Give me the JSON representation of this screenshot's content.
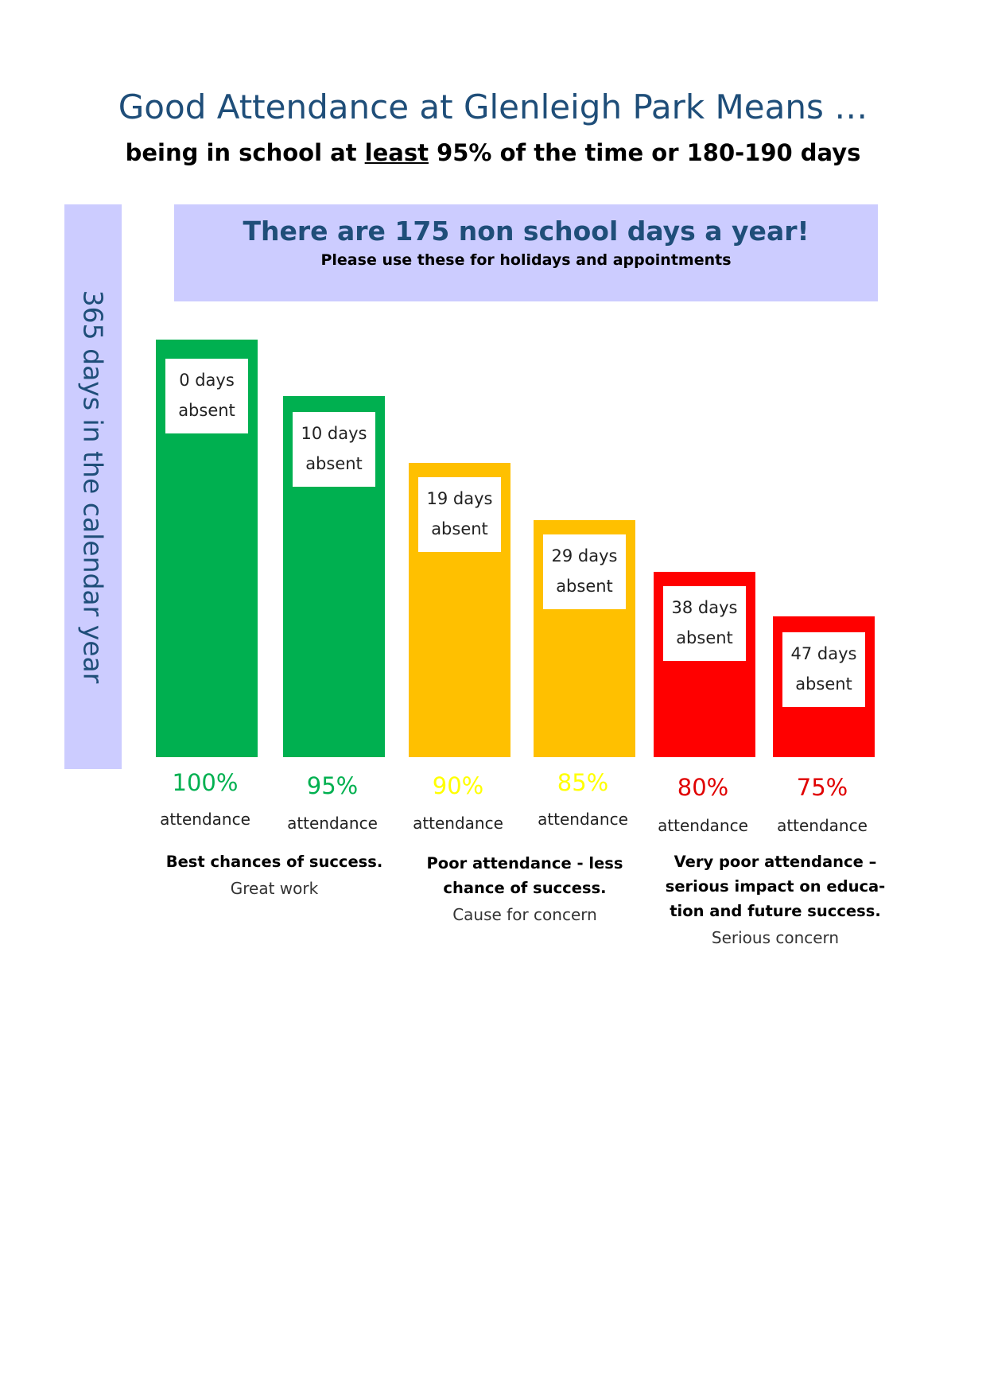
{
  "header": {
    "title": "Good Attendance at Glenleigh Park Means …",
    "subtitle_before": "being in school at ",
    "subtitle_underlined": "least",
    "subtitle_after": " 95% of the time or 180-190 days"
  },
  "side_label": "365 days in the calendar year",
  "banner": {
    "headline": "There are 175 non school days a year!",
    "subline": "Please use these for holidays and appointments"
  },
  "colors": {
    "green": "#00b050",
    "amber": "#ffc000",
    "red": "#ff0000",
    "band": "#ccccff",
    "title_blue": "#1f4e79",
    "pct_green": "#00b050",
    "pct_yellow": "#ffff00",
    "pct_red": "#e00000"
  },
  "chart_data": {
    "type": "bar",
    "categories": [
      "100%",
      "95%",
      "90%",
      "85%",
      "80%",
      "75%"
    ],
    "attendance_percent": [
      100,
      95,
      90,
      85,
      80,
      75
    ],
    "days_absent": [
      0,
      10,
      19,
      29,
      38,
      47
    ],
    "absent_line1": [
      "0 days",
      "10 days",
      "19 days",
      "29 days",
      "38 days",
      "47 days"
    ],
    "absent_line2": "absent",
    "attendance_word": "attendance",
    "bar_colors": [
      "green",
      "green",
      "amber",
      "amber",
      "red",
      "red"
    ],
    "pct_colors": [
      "pct_green",
      "pct_green",
      "pct_yellow",
      "pct_yellow",
      "pct_red",
      "pct_red"
    ]
  },
  "groups": [
    {
      "headline": [
        "Best chances of success."
      ],
      "tag": "Great work"
    },
    {
      "headline": [
        "Poor attendance - less",
        "chance of success."
      ],
      "tag": "Cause for concern"
    },
    {
      "headline": [
        "Very poor attendance –",
        "serious impact on educa-",
        "tion and future success."
      ],
      "tag": "Serious concern"
    }
  ]
}
